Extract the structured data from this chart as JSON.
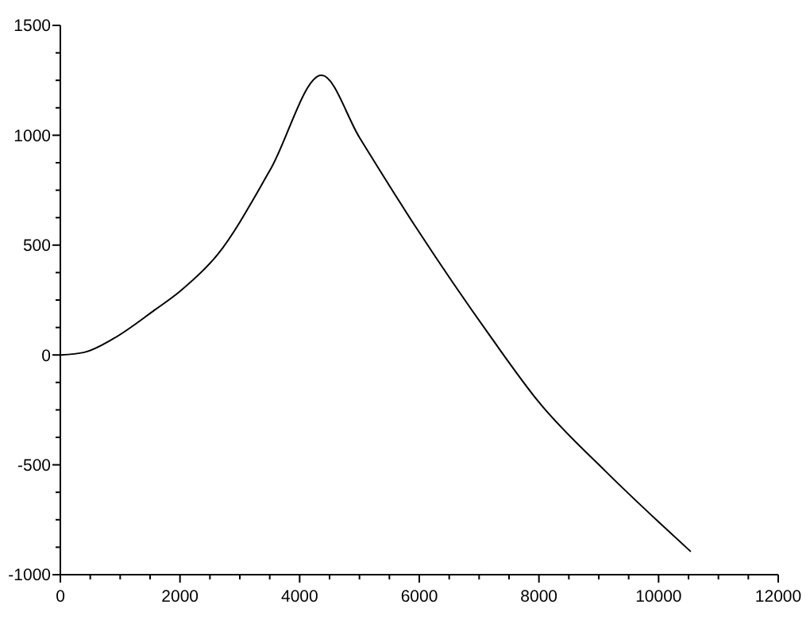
{
  "chart_data": {
    "type": "line",
    "x": [
      0,
      400,
      885,
      1584,
      2000,
      2634,
      3511,
      4367,
      5000,
      5961,
      7187,
      8000,
      9112,
      10000,
      10538
    ],
    "series": [
      {
        "color": "#000000",
        "values": [
          0,
          12,
          74,
          206,
          290,
          459,
          844,
          1273,
          990,
          574,
          85,
          -215,
          -529,
          -760,
          -895
        ]
      }
    ],
    "xlim": [
      0,
      12000
    ],
    "ylim": [
      -1000,
      1500
    ],
    "xticks": [
      0,
      {
        "value": 500,
        "label": null
      },
      2000,
      {
        "value": 1000,
        "label": null
      },
      {
        "value": 1500,
        "label": null
      },
      {
        "value": 2500,
        "label": null
      },
      {
        "value": 3000,
        "label": null
      },
      {
        "value": 3500,
        "label": null
      },
      4000,
      {
        "value": 4500,
        "label": null
      },
      {
        "value": 5000,
        "label": null
      },
      {
        "value": 5500,
        "label": null
      },
      6000,
      {
        "value": 6500,
        "label": null
      },
      {
        "value": 7000,
        "label": null
      },
      {
        "value": 7500,
        "label": null
      },
      8000,
      {
        "value": 8500,
        "label": null
      },
      {
        "value": 9000,
        "label": null
      },
      {
        "value": 9500,
        "label": null
      },
      10000,
      {
        "value": 10500,
        "label": null
      },
      {
        "value": 11000,
        "label": null
      },
      {
        "value": 11500,
        "label": null
      },
      12000
    ],
    "yticks": [
      -1000,
      {
        "value": -875,
        "label": null
      },
      {
        "value": -750,
        "label": null
      },
      {
        "value": -625,
        "label": null
      },
      -500,
      {
        "value": -375,
        "label": null
      },
      {
        "value": -250,
        "label": null
      },
      {
        "value": -125,
        "label": null
      },
      0,
      {
        "value": 125,
        "label": null
      },
      {
        "value": 250,
        "label": null
      },
      {
        "value": 375,
        "label": null
      },
      500,
      {
        "value": 625,
        "label": null
      },
      {
        "value": 750,
        "label": null
      },
      {
        "value": 875,
        "label": null
      },
      1000,
      {
        "value": 1125,
        "label": null
      },
      {
        "value": 1250,
        "label": null
      },
      {
        "value": 1375,
        "label": null
      },
      1500
    ],
    "grid": false,
    "marker": "none",
    "line_style": "solid"
  }
}
